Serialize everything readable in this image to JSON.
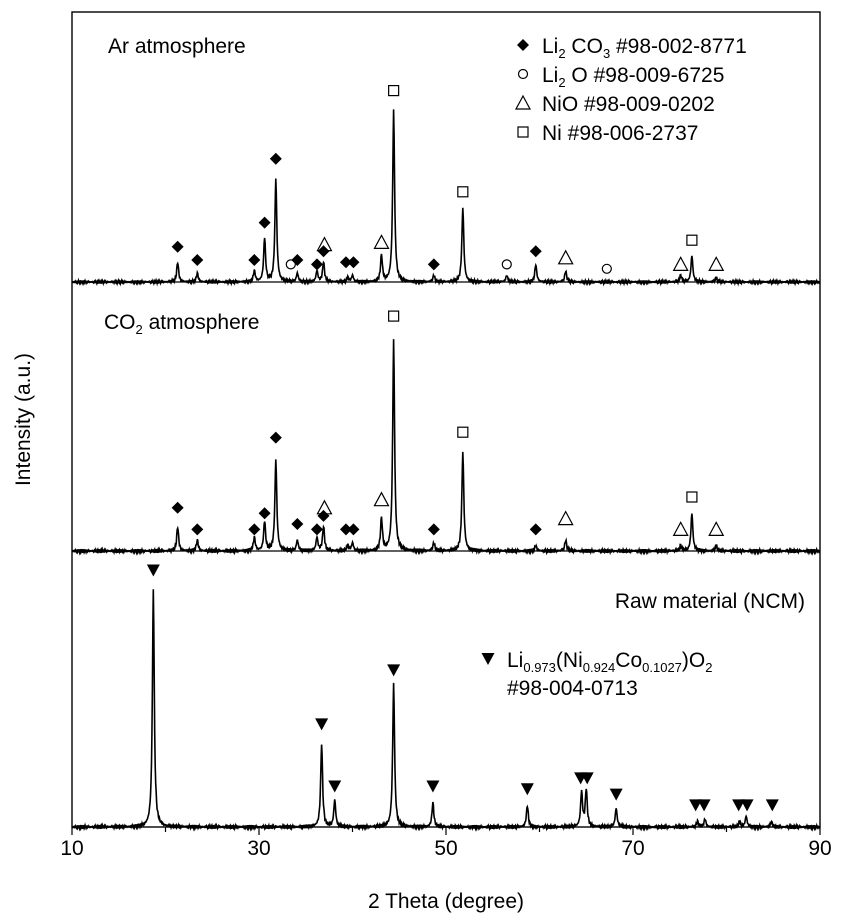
{
  "chart_data": {
    "type": "line",
    "title": "",
    "xlabel": "2 Theta (degree)",
    "ylabel": "Intensity (a.u.)",
    "xlim": [
      10,
      90
    ],
    "xticks": [
      10,
      30,
      50,
      70,
      90
    ],
    "panels": [
      {
        "name": "Ar atmosphere",
        "label_parts": {
          "base": "Ar atmosphere"
        },
        "peaks": [
          {
            "x": 21.3,
            "h": 0.09
          },
          {
            "x": 23.4,
            "h": 0.04
          },
          {
            "x": 29.5,
            "h": 0.05
          },
          {
            "x": 30.6,
            "h": 0.2
          },
          {
            "x": 31.8,
            "h": 0.47
          },
          {
            "x": 34.1,
            "h": 0.04
          },
          {
            "x": 36.2,
            "h": 0.05
          },
          {
            "x": 36.9,
            "h": 0.09
          },
          {
            "x": 39.5,
            "h": 0.02
          },
          {
            "x": 40.0,
            "h": 0.03
          },
          {
            "x": 43.1,
            "h": 0.12
          },
          {
            "x": 44.4,
            "h": 0.78
          },
          {
            "x": 48.7,
            "h": 0.03
          },
          {
            "x": 51.8,
            "h": 0.34
          },
          {
            "x": 56.5,
            "h": 0.03
          },
          {
            "x": 59.6,
            "h": 0.08
          },
          {
            "x": 62.8,
            "h": 0.05
          },
          {
            "x": 75.1,
            "h": 0.03
          },
          {
            "x": 76.3,
            "h": 0.12
          },
          {
            "x": 78.9,
            "h": 0.02
          }
        ],
        "markers": [
          {
            "s": "diamond",
            "x": 21.3,
            "h": 0.16
          },
          {
            "s": "diamond",
            "x": 23.4,
            "h": 0.1
          },
          {
            "s": "diamond",
            "x": 29.5,
            "h": 0.1
          },
          {
            "s": "diamond",
            "x": 30.6,
            "h": 0.27
          },
          {
            "s": "diamond",
            "x": 31.8,
            "h": 0.56
          },
          {
            "s": "circle",
            "x": 33.4,
            "h": 0.08
          },
          {
            "s": "diamond",
            "x": 34.1,
            "h": 0.1
          },
          {
            "s": "diamond",
            "x": 36.2,
            "h": 0.08
          },
          {
            "s": "diamond",
            "x": 36.9,
            "h": 0.14
          },
          {
            "s": "triangle",
            "x": 37.0,
            "h": 0.17
          },
          {
            "s": "diamond",
            "x": 39.3,
            "h": 0.09
          },
          {
            "s": "diamond",
            "x": 40.1,
            "h": 0.09
          },
          {
            "s": "triangle",
            "x": 43.1,
            "h": 0.18
          },
          {
            "s": "square",
            "x": 44.4,
            "h": 0.87
          },
          {
            "s": "diamond",
            "x": 48.7,
            "h": 0.08
          },
          {
            "s": "square",
            "x": 51.8,
            "h": 0.41
          },
          {
            "s": "circle",
            "x": 56.5,
            "h": 0.08
          },
          {
            "s": "diamond",
            "x": 59.6,
            "h": 0.14
          },
          {
            "s": "triangle",
            "x": 62.8,
            "h": 0.11
          },
          {
            "s": "circle",
            "x": 67.2,
            "h": 0.06
          },
          {
            "s": "triangle",
            "x": 75.1,
            "h": 0.08
          },
          {
            "s": "square",
            "x": 76.3,
            "h": 0.19
          },
          {
            "s": "triangle",
            "x": 78.9,
            "h": 0.08
          }
        ]
      },
      {
        "name": "CO2 atmosphere",
        "label_parts": {
          "pre": "CO",
          "sub": "2",
          "post": " atmosphere"
        },
        "peaks": [
          {
            "x": 21.3,
            "h": 0.09
          },
          {
            "x": 23.4,
            "h": 0.04
          },
          {
            "x": 29.5,
            "h": 0.05
          },
          {
            "x": 30.6,
            "h": 0.11
          },
          {
            "x": 31.8,
            "h": 0.34
          },
          {
            "x": 34.1,
            "h": 0.04
          },
          {
            "x": 36.2,
            "h": 0.05
          },
          {
            "x": 36.9,
            "h": 0.09
          },
          {
            "x": 39.5,
            "h": 0.02
          },
          {
            "x": 40.0,
            "h": 0.03
          },
          {
            "x": 43.1,
            "h": 0.12
          },
          {
            "x": 44.4,
            "h": 0.78
          },
          {
            "x": 48.7,
            "h": 0.03
          },
          {
            "x": 51.8,
            "h": 0.37
          },
          {
            "x": 59.6,
            "h": 0.02
          },
          {
            "x": 62.8,
            "h": 0.04
          },
          {
            "x": 75.1,
            "h": 0.02
          },
          {
            "x": 76.3,
            "h": 0.14
          },
          {
            "x": 78.9,
            "h": 0.02
          }
        ],
        "markers": [
          {
            "s": "diamond",
            "x": 21.3,
            "h": 0.16
          },
          {
            "s": "diamond",
            "x": 23.4,
            "h": 0.08
          },
          {
            "s": "diamond",
            "x": 29.5,
            "h": 0.08
          },
          {
            "s": "diamond",
            "x": 30.6,
            "h": 0.14
          },
          {
            "s": "diamond",
            "x": 31.8,
            "h": 0.42
          },
          {
            "s": "diamond",
            "x": 34.1,
            "h": 0.1
          },
          {
            "s": "diamond",
            "x": 36.2,
            "h": 0.08
          },
          {
            "s": "diamond",
            "x": 36.9,
            "h": 0.13
          },
          {
            "s": "triangle",
            "x": 37.0,
            "h": 0.16
          },
          {
            "s": "diamond",
            "x": 39.3,
            "h": 0.08
          },
          {
            "s": "diamond",
            "x": 40.1,
            "h": 0.08
          },
          {
            "s": "triangle",
            "x": 43.1,
            "h": 0.19
          },
          {
            "s": "square",
            "x": 44.4,
            "h": 0.87
          },
          {
            "s": "diamond",
            "x": 48.7,
            "h": 0.08
          },
          {
            "s": "square",
            "x": 51.8,
            "h": 0.44
          },
          {
            "s": "diamond",
            "x": 59.6,
            "h": 0.08
          },
          {
            "s": "triangle",
            "x": 62.8,
            "h": 0.12
          },
          {
            "s": "triangle",
            "x": 75.1,
            "h": 0.08
          },
          {
            "s": "square",
            "x": 76.3,
            "h": 0.2
          },
          {
            "s": "triangle",
            "x": 78.9,
            "h": 0.08
          }
        ]
      },
      {
        "name": "Raw material (NCM)",
        "label_parts": {
          "base": "Raw material (NCM)"
        },
        "peaks": [
          {
            "x": 18.7,
            "h": 0.88
          },
          {
            "x": 36.7,
            "h": 0.31
          },
          {
            "x": 38.1,
            "h": 0.1
          },
          {
            "x": 44.4,
            "h": 0.53
          },
          {
            "x": 48.6,
            "h": 0.09
          },
          {
            "x": 58.7,
            "h": 0.08
          },
          {
            "x": 64.5,
            "h": 0.13
          },
          {
            "x": 65.0,
            "h": 0.14
          },
          {
            "x": 68.2,
            "h": 0.07
          },
          {
            "x": 76.9,
            "h": 0.02
          },
          {
            "x": 77.7,
            "h": 0.03
          },
          {
            "x": 81.4,
            "h": 0.02
          },
          {
            "x": 82.1,
            "h": 0.04
          },
          {
            "x": 84.8,
            "h": 0.02
          }
        ],
        "markers": [
          {
            "s": "down",
            "x": 18.7,
            "h": 0.95
          },
          {
            "s": "down",
            "x": 36.7,
            "h": 0.38
          },
          {
            "s": "down",
            "x": 38.1,
            "h": 0.15
          },
          {
            "s": "down",
            "x": 44.4,
            "h": 0.58
          },
          {
            "s": "down",
            "x": 48.6,
            "h": 0.15
          },
          {
            "s": "down",
            "x": 58.7,
            "h": 0.14
          },
          {
            "s": "down",
            "x": 64.4,
            "h": 0.18
          },
          {
            "s": "down",
            "x": 65.1,
            "h": 0.18
          },
          {
            "s": "down",
            "x": 68.2,
            "h": 0.12
          },
          {
            "s": "down",
            "x": 76.7,
            "h": 0.08
          },
          {
            "s": "down",
            "x": 77.6,
            "h": 0.08
          },
          {
            "s": "down",
            "x": 81.3,
            "h": 0.08
          },
          {
            "s": "down",
            "x": 82.2,
            "h": 0.08
          },
          {
            "s": "down",
            "x": 84.9,
            "h": 0.08
          }
        ]
      }
    ],
    "legend": [
      {
        "symbol": "diamond",
        "pre": "Li",
        "sub": "2",
        "post": " CO",
        "sub2": "3",
        "rest": " #98-002-8771"
      },
      {
        "symbol": "circle",
        "pre": "Li",
        "sub": "2",
        "post": " O #98-009-6725"
      },
      {
        "symbol": "triangle",
        "pre": "NiO #98-009-0202"
      },
      {
        "symbol": "square",
        "pre": "Ni #98-006-2737"
      }
    ],
    "raw_legend": {
      "symbol": "down",
      "parts": [
        {
          "t": "Li"
        },
        {
          "t": "0.973",
          "sub": true
        },
        {
          "t": "(Ni"
        },
        {
          "t": "0.924",
          "sub": true
        },
        {
          "t": "Co"
        },
        {
          "t": "0.1027",
          "sub": true
        },
        {
          "t": ")O"
        },
        {
          "t": "2",
          "sub": true
        }
      ],
      "ref": "#98-004-0713"
    }
  }
}
